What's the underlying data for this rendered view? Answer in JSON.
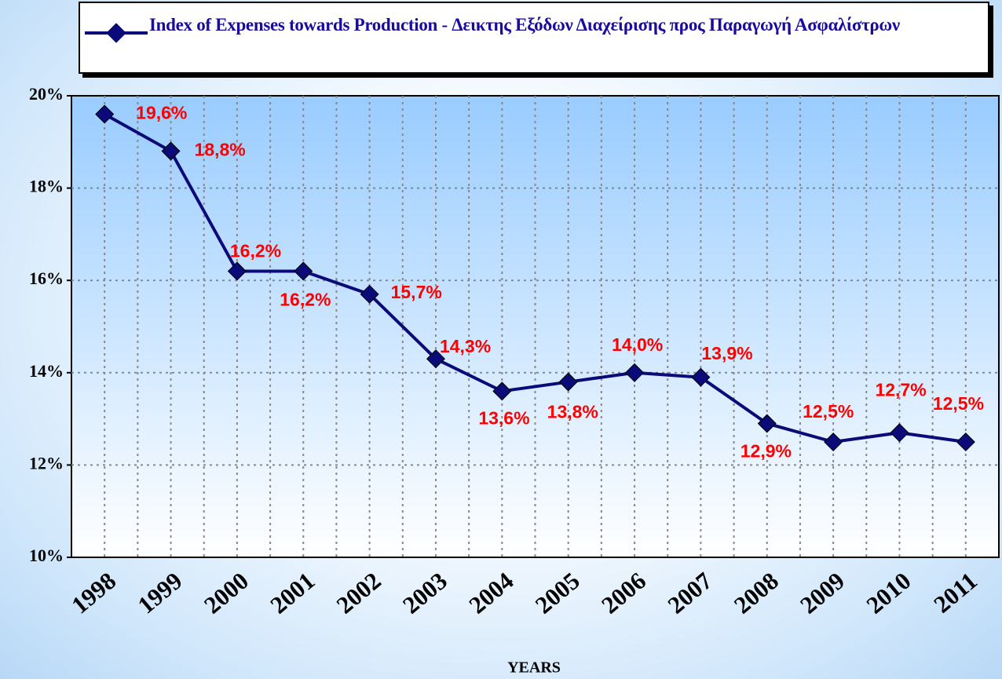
{
  "chart_data": {
    "type": "line",
    "categories": [
      "1998",
      "1999",
      "2000",
      "2001",
      "2002",
      "2003",
      "2004",
      "2005",
      "2006",
      "2007",
      "2008",
      "2009",
      "2010",
      "2011"
    ],
    "series": [
      {
        "name": "Index of Expenses towards Production - Δεικτης Εξόδων Διαχείρισης προς Παραγωγή Ασφαλίστρων",
        "color": "#0a0a78",
        "values": [
          19.6,
          18.8,
          16.2,
          16.2,
          15.7,
          14.3,
          13.6,
          13.8,
          14.0,
          13.9,
          12.9,
          12.5,
          12.7,
          12.5
        ],
        "value_labels": [
          "19,6%",
          "18,8%",
          "16,2%",
          "16,2%",
          "15,7%",
          "14,3%",
          "13,6%",
          "13,8%",
          "14,0%",
          "13,9%",
          "12,9%",
          "12,5%",
          "12,7%",
          "12,5%"
        ]
      }
    ],
    "label_color": "#ff0000",
    "xlabel": "YEARS",
    "ylim": [
      10,
      20
    ],
    "yticks": [
      {
        "value": 10,
        "label": "10%"
      },
      {
        "value": 12,
        "label": "12%"
      },
      {
        "value": 14,
        "label": "14%"
      },
      {
        "value": 16,
        "label": "16%"
      },
      {
        "value": 18,
        "label": "18%"
      },
      {
        "value": 20,
        "label": "20%"
      }
    ],
    "grid": true
  }
}
